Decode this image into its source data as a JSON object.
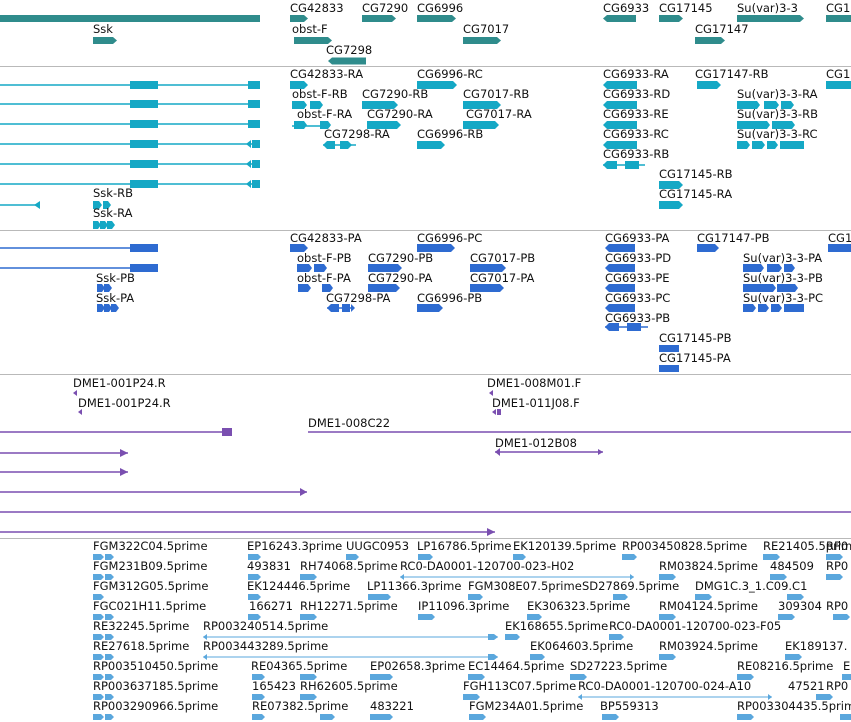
{
  "colors": {
    "gene": "#2f8c8c",
    "transcript": "#15a8c5",
    "protein": "#2e6bd1",
    "clone": "#7a4fb0",
    "est": "#5aa7dd",
    "divider": "#b9b9b9"
  },
  "tracks": {
    "genes": {
      "labels": {
        "g1": "Ssk",
        "g2": "CG42833",
        "g3": "obst-F",
        "g4": "CG7298",
        "g5": "CG7290",
        "g6": "CG6996",
        "g7": "CG7017",
        "g8": "CG6933",
        "g9": "CG17145",
        "g10": "CG17147",
        "g11": "Su(var)3-3",
        "g12": "CG1"
      }
    },
    "transcripts": {
      "labels": {
        "t1": "Ssk-RB",
        "t2": "Ssk-RA",
        "t3": "CG42833-RA",
        "t4": "obst-F-RB",
        "t5": "obst-F-RA",
        "t6": "CG7290-RB",
        "t7": "CG7290-RA",
        "t8": "CG7298-RA",
        "t9": "CG6996-RC",
        "t10": "CG6996-RB",
        "t11": "CG7017-RB",
        "t12": "CG7017-RA",
        "t13": "CG6933-RA",
        "t14": "CG6933-RD",
        "t15": "CG6933-RE",
        "t16": "CG6933-RC",
        "t17": "CG6933-RB",
        "t18": "CG17145-RB",
        "t19": "CG17145-RA",
        "t20": "CG17147-RB",
        "t21": "Su(var)3-3-RA",
        "t22": "Su(var)3-3-RB",
        "t23": "Su(var)3-3-RC",
        "t24": "CG1"
      }
    },
    "proteins": {
      "labels": {
        "p1": "Ssk-PB",
        "p2": "Ssk-PA",
        "p3": "CG42833-PA",
        "p4": "obst-F-PB",
        "p5": "obst-F-PA",
        "p6": "CG7290-PB",
        "p7": "CG7290-PA",
        "p8": "CG7298-PA",
        "p9": "CG6996-PC",
        "p10": "CG6996-PB",
        "p11": "CG7017-PB",
        "p12": "CG7017-PA",
        "p13": "CG6933-PA",
        "p14": "CG6933-PD",
        "p15": "CG6933-PE",
        "p16": "CG6933-PC",
        "p17": "CG6933-PB",
        "p18": "CG17145-PB",
        "p19": "CG17145-PA",
        "p20": "CG17147-PB",
        "p21": "Su(var)3-3-PA",
        "p22": "Su(var)3-3-PB",
        "p23": "Su(var)3-3-PC",
        "p24": "CG1"
      }
    },
    "clones": {
      "labels": {
        "c1": "DME1-001P24.R",
        "c2": "DME1-001P24.R",
        "c3": "DME1-008M01.F",
        "c4": "DME1-011J08.F",
        "c5": "DME1-008C22",
        "c6": "DME1-012B08"
      }
    },
    "ests": {
      "labels": {
        "e1": "FGM322C04.5prime",
        "e2": "EP16243.3prime",
        "e3": "UUGC0953",
        "e4": "LP16786.5prime",
        "e5": "EK120139.5prime",
        "e6": "RP003450828.5prime",
        "e7": "RE21405.5prime",
        "e8": "RP0",
        "e9": "FGM231B09.5prime",
        "e10": "493831",
        "e11": "RH74068.5prime",
        "e12": "RC0-DA0001-120700-023-H02",
        "e13": "RM03824.5prime",
        "e14": "484509",
        "e15": "RP0",
        "e16": "FGM312G05.5prime",
        "e17": "EK124446.5prime",
        "e18": "LP11366.3prime",
        "e19": "FGM308E07.5prime",
        "e20": "SD27869.5prime",
        "e21": "DMG1C.3_1.C09.C1",
        "e22": "FGC021H11.5prime",
        "e23": "166271",
        "e24": "RH12271.5prime",
        "e25": "IP11096.3prime",
        "e26": "EK306323.5prime",
        "e27": "RM04124.5prime",
        "e28": "309304",
        "e29": "RP0",
        "e30": "RE32245.5prime",
        "e31": "RP003240514.5prime",
        "e32": "EK168655.5prime",
        "e33": "RC0-DA0001-120700-023-F05",
        "e34": "RE27618.5prime",
        "e35": "RP003443289.5prime",
        "e36": "EK064603.5prime",
        "e37": "RM03924.5prime",
        "e38": "EK189137.",
        "e39": "RP003510450.5prime",
        "e40": "RE04365.5prime",
        "e41": "EP02658.3prime",
        "e42": "EC14464.5prime",
        "e43": "SD27223.5prime",
        "e44": "RE08216.5prime",
        "e45": "E",
        "e46": "RP003637185.5prime",
        "e47": "165423",
        "e48": "RH62605.5prime",
        "e49": "FGH113C07.5prime",
        "e50": "RC0-DA0001-120700-024-A10",
        "e51": "47521",
        "e52": "RP0",
        "e53": "RP003290966.5prime",
        "e54": "RE07382.5prime",
        "e55": "483221",
        "e56": "FGM234A01.5prime",
        "e57": "BP559313",
        "e58": "RP003304435.5prime"
      }
    }
  }
}
